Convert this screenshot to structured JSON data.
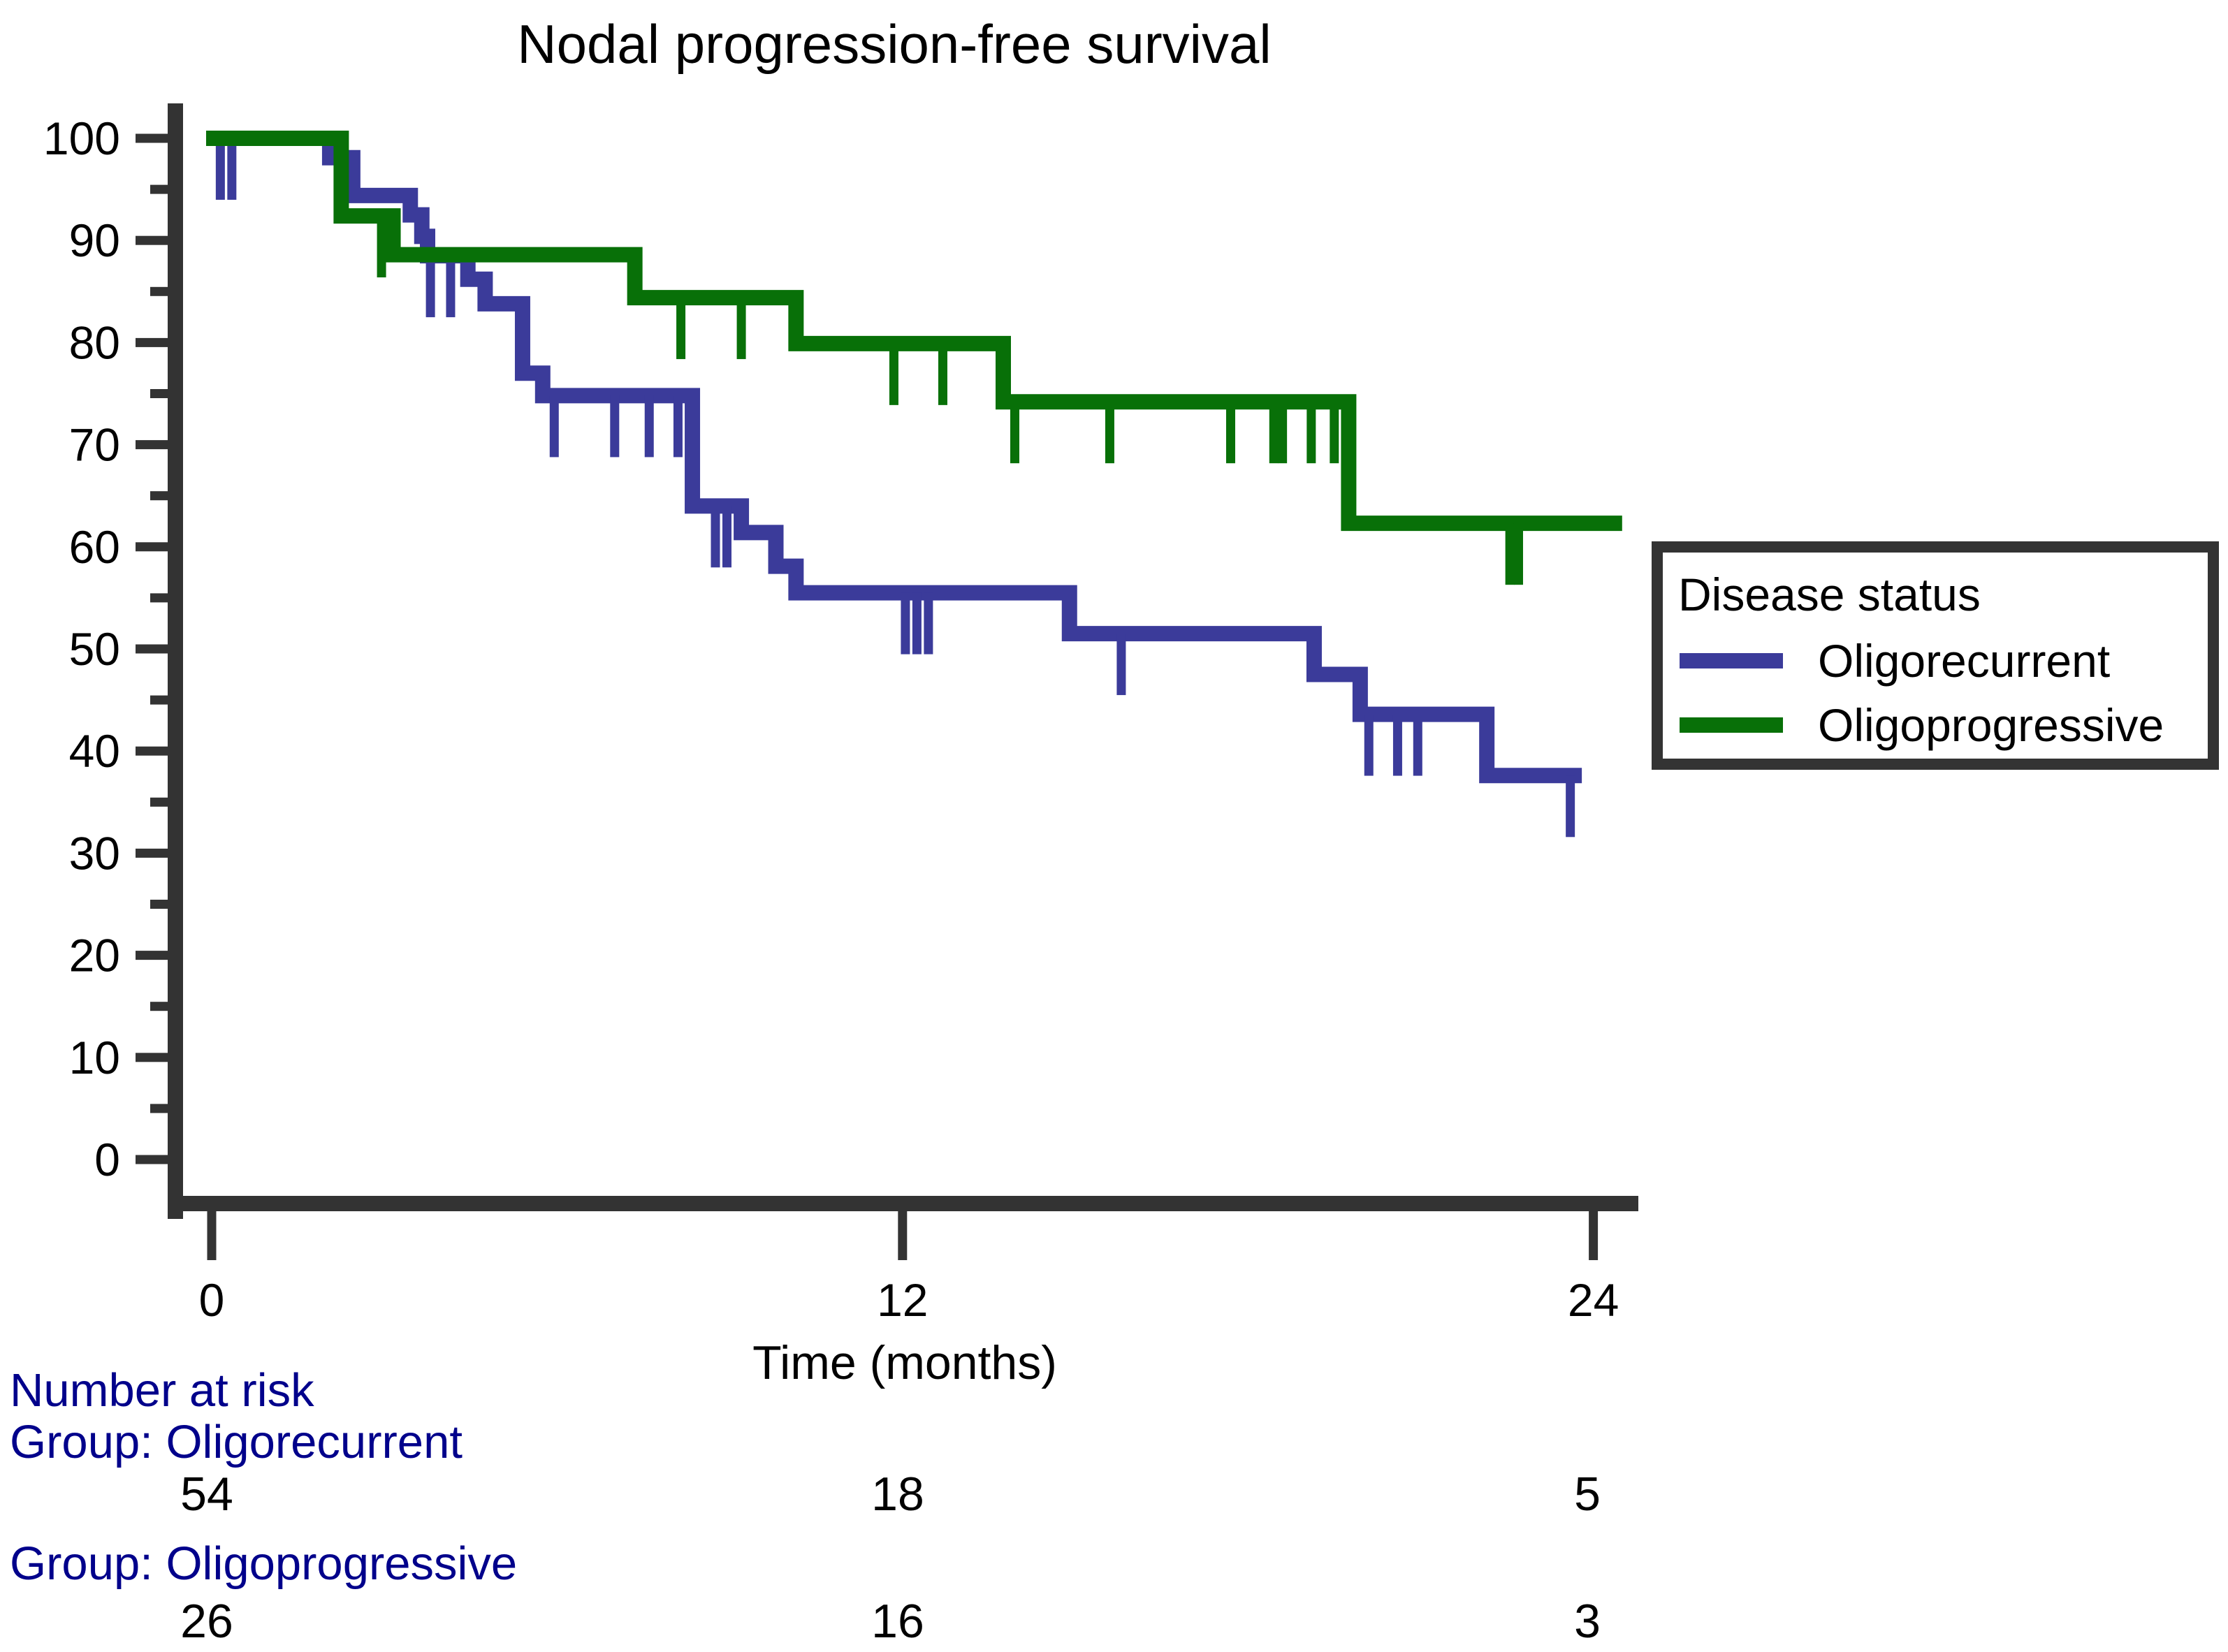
{
  "page": {
    "background": "#ffffff"
  },
  "chart_data": {
    "type": "line",
    "subtype": "kaplan-meier-step",
    "title": "Nodal progression-free survival",
    "xlabel": "Time (months)",
    "ylabel": "",
    "xlim": [
      0,
      24.8
    ],
    "ylim": [
      0,
      100
    ],
    "x_ticks": [
      0,
      12,
      24
    ],
    "x_tick_labels": [
      "0",
      "12",
      "24"
    ],
    "y_ticks": [
      0,
      10,
      20,
      30,
      40,
      50,
      60,
      70,
      80,
      90,
      100
    ],
    "y_tick_labels": [
      "0",
      "10",
      "20",
      "30",
      "40",
      "50",
      "60",
      "70",
      "80",
      "90",
      "100"
    ],
    "y_minor_ticks": [
      5,
      15,
      25,
      35,
      45,
      55,
      65,
      75,
      85,
      95
    ],
    "grid": false,
    "axis_color": "#333333",
    "legend": {
      "title": "Disease status",
      "position": "right",
      "entries": [
        {
          "label": "Oligorecurrent",
          "color": "#3B3B9A"
        },
        {
          "label": "Oligoprogressive",
          "color": "#087008"
        }
      ]
    },
    "series": [
      {
        "name": "Oligorecurrent",
        "color": "#3B3B9A",
        "points": [
          [
            0,
            100
          ],
          [
            2.05,
            98.1
          ],
          [
            2.45,
            94.4
          ],
          [
            3.45,
            92.5
          ],
          [
            3.65,
            90.4
          ],
          [
            3.75,
            88.5
          ],
          [
            4.45,
            86.2
          ],
          [
            4.75,
            83.8
          ],
          [
            5.4,
            77.0
          ],
          [
            5.75,
            74.8
          ],
          [
            8.35,
            64.0
          ],
          [
            9.2,
            61.4
          ],
          [
            9.8,
            58.1
          ],
          [
            10.15,
            55.5
          ],
          [
            14.9,
            51.5
          ],
          [
            19.15,
            47.5
          ],
          [
            19.95,
            43.6
          ],
          [
            22.15,
            37.6
          ]
        ],
        "end_time": 23.8,
        "censor_times": [
          0.15,
          0.35,
          3.8,
          4.15,
          5.95,
          7.0,
          7.6,
          8.1,
          8.75,
          8.95,
          12.05,
          12.25,
          12.45,
          15.8,
          20.1,
          20.6,
          20.95,
          23.6
        ]
      },
      {
        "name": "Oligoprogressive",
        "color": "#087008",
        "points": [
          [
            0,
            100
          ],
          [
            2.25,
            92.4
          ],
          [
            3.15,
            88.6
          ],
          [
            7.35,
            84.4
          ],
          [
            10.15,
            79.9
          ],
          [
            13.75,
            74.2
          ],
          [
            19.75,
            62.3
          ]
        ],
        "end_time": 24.5,
        "censor_times": [
          2.95,
          8.15,
          9.2,
          11.85,
          12.7,
          13.95,
          15.6,
          17.7,
          18.45,
          18.6,
          19.1,
          19.5,
          22.55,
          22.7
        ]
      }
    ]
  },
  "risk_table": {
    "header": "Number at risk",
    "label_color": "#00008B",
    "time_points": [
      "0",
      "12",
      "24"
    ],
    "groups": [
      {
        "label": "Group:  Oligorecurrent",
        "counts": [
          "54",
          "18",
          "5"
        ]
      },
      {
        "label": "Group:  Oligoprogressive",
        "counts": [
          "26",
          "16",
          "3"
        ]
      }
    ]
  }
}
